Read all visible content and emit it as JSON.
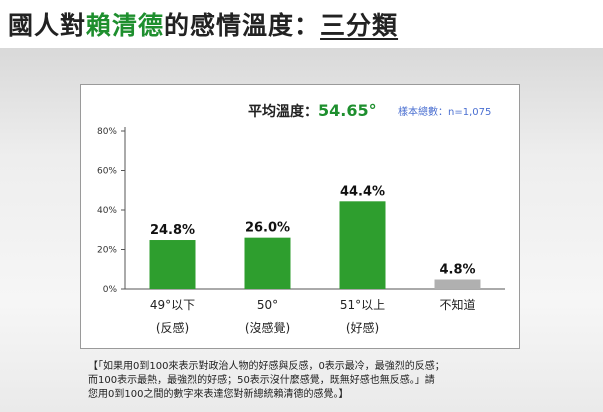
{
  "title": {
    "prefix": "國人對",
    "highlight": "賴清德",
    "middle": "的感情溫度：",
    "underlined": "三分類"
  },
  "average": {
    "label": "平均溫度：",
    "value": "54.65°"
  },
  "sample_size": "樣本總數：n=1,075",
  "note_lines": [
    "【「如果用0到100來表示對政治人物的好感與反感，0表示最冷，最強烈的反感；",
    "而100表示最熱，最強烈的好感；50表示沒什麼感覺，既無好感也無反感。」請",
    "您用0到100之間的數字來表達您對新總統賴清德的感覺。】"
  ],
  "colors": {
    "primary_bar": "#2e9e2e",
    "neutral_bar": "#b0b0b0",
    "accent_text": "#1e8f2e"
  },
  "chart_data": {
    "type": "bar",
    "categories": [
      "49°以下",
      "50°",
      "51°以上",
      "不知道"
    ],
    "category_sublabels": [
      "(反感)",
      "(沒感覺)",
      "(好感)",
      ""
    ],
    "values": [
      24.8,
      26.0,
      44.4,
      4.8
    ],
    "value_labels": [
      "24.8%",
      "26.0%",
      "44.4%",
      "4.8%"
    ],
    "bar_colors": [
      "#2e9e2e",
      "#2e9e2e",
      "#2e9e2e",
      "#b0b0b0"
    ],
    "ylim": [
      0,
      80
    ],
    "yticks": [
      0,
      20,
      40,
      60,
      80
    ],
    "ytick_labels": [
      "0%",
      "20%",
      "40%",
      "60%",
      "80%"
    ],
    "grid": false,
    "legend": "none"
  }
}
